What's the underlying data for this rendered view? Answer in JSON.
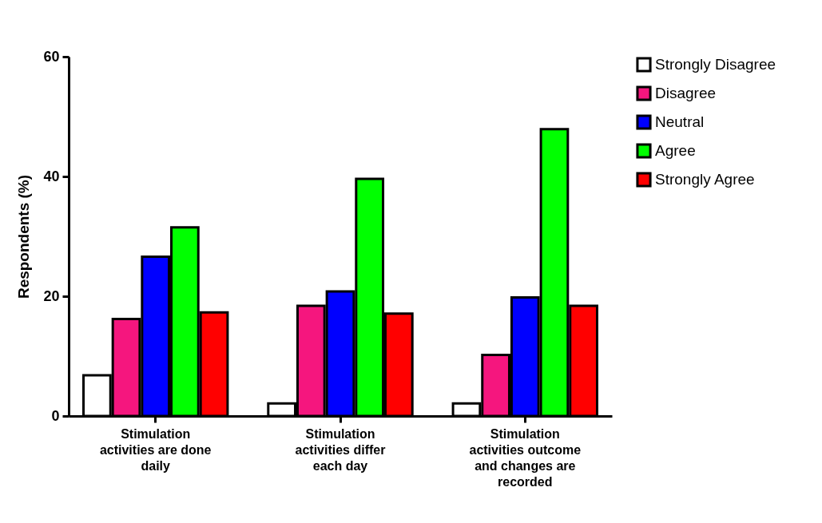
{
  "chart_data": {
    "type": "bar",
    "ylabel": "Respondents (%)",
    "categories": [
      "Stimulation activities are done daily",
      "Stimulation activities differ each day",
      "Stimulation activities outcome and changes are recorded"
    ],
    "series": [
      {
        "name": "Strongly Disagree",
        "color": "#ffffff",
        "values": [
          6.8,
          2.1,
          2.1
        ]
      },
      {
        "name": "Disagree",
        "color": "#f5167e",
        "values": [
          16.2,
          18.4,
          10.2
        ]
      },
      {
        "name": "Neutral",
        "color": "#0000ff",
        "values": [
          26.6,
          20.8,
          19.8
        ]
      },
      {
        "name": "Agree",
        "color": "#00ff00",
        "values": [
          31.5,
          39.6,
          47.9
        ]
      },
      {
        "name": "Strongly Agree",
        "color": "#ff0000",
        "values": [
          17.3,
          17.1,
          18.4
        ]
      }
    ],
    "ylim": [
      0,
      60
    ],
    "yticks": [
      0,
      20,
      40,
      60
    ],
    "grid": false,
    "legend": "top right"
  }
}
